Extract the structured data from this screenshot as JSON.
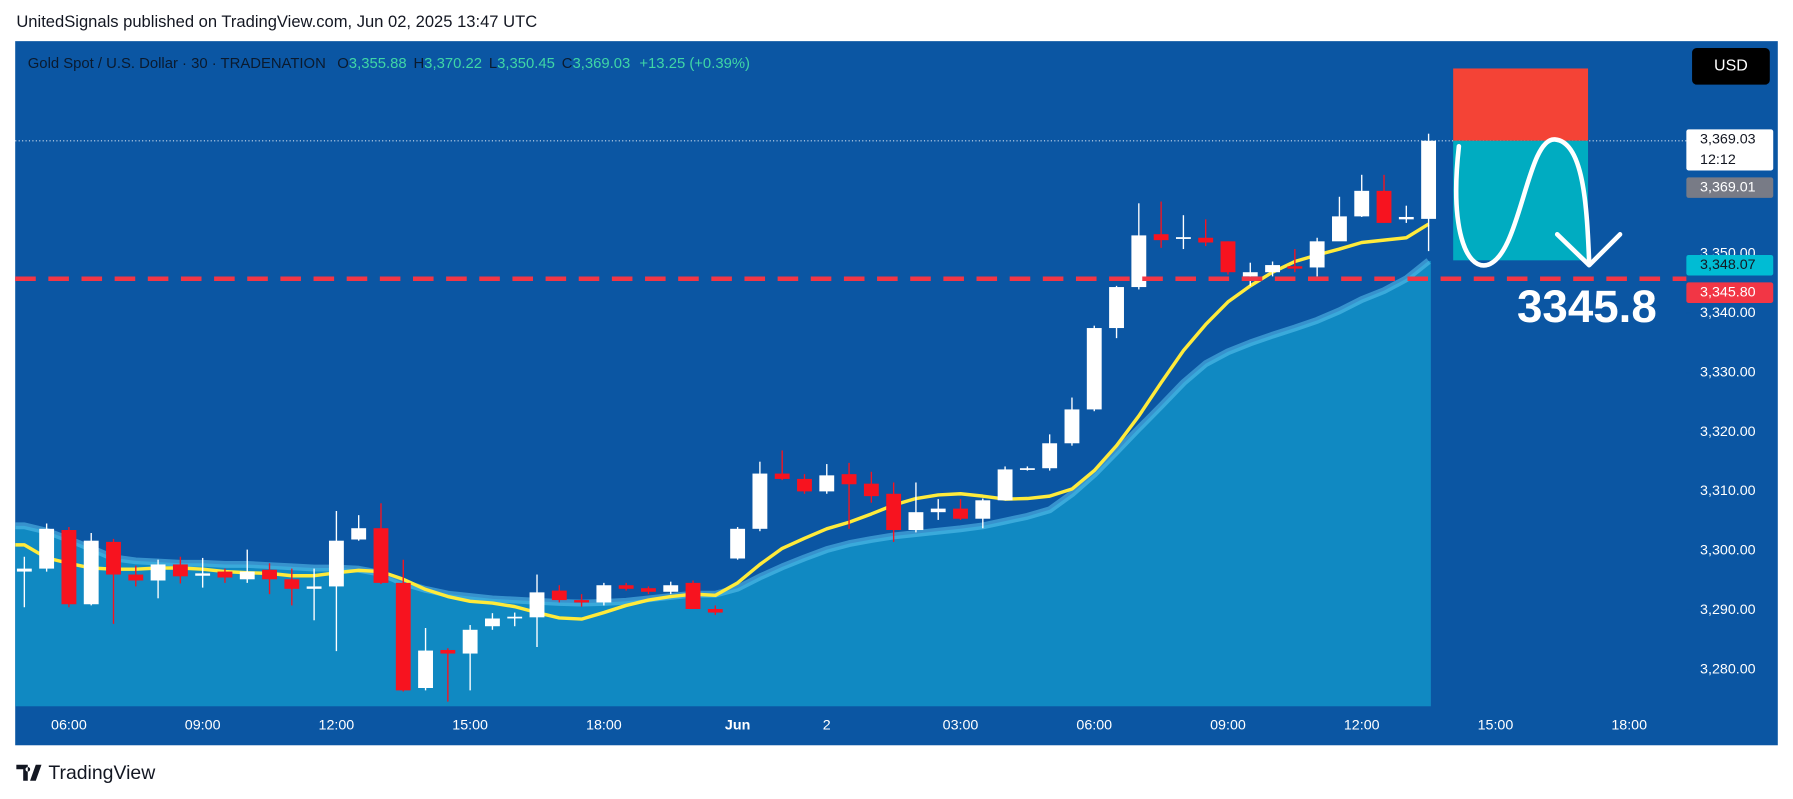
{
  "header": {
    "text": "UnitedSignals published on TradingView.com, Jun 02, 2025 13:47 UTC"
  },
  "chart_data": {
    "type": "candlestick",
    "symbol": "Gold Spot / U.S. Dollar · 30 · TRADENATION",
    "ohlc_legend": [
      {
        "key": "O",
        "text": "3,355.88"
      },
      {
        "key": "H",
        "text": "3,370.22"
      },
      {
        "key": "L",
        "text": "3,350.45"
      },
      {
        "key": "C",
        "text": "3,369.03"
      }
    ],
    "change": "+13.25 (+0.39%)",
    "currency": "USD",
    "categories": [
      null,
      null,
      "06:00",
      null,
      null,
      null,
      null,
      null,
      "09:00",
      null,
      null,
      null,
      null,
      null,
      "12:00",
      null,
      null,
      null,
      null,
      null,
      "15:00",
      null,
      null,
      null,
      null,
      null,
      "18:00",
      null,
      null,
      null,
      null,
      null,
      "Jun",
      null,
      null,
      null,
      "2",
      null,
      null,
      null,
      null,
      null,
      "03:00",
      null,
      null,
      null,
      null,
      null,
      "06:00",
      null,
      null,
      null,
      null,
      null,
      "09:00",
      null,
      null,
      null,
      null,
      null,
      "12:00",
      null,
      null,
      null,
      null,
      null,
      "15:00",
      null,
      null,
      null,
      null,
      null,
      "18:00",
      null,
      null
    ],
    "open": [
      3296.5,
      3297,
      3303.5,
      3291,
      3301.5,
      3296,
      3295,
      3297.7,
      3295.8,
      3296.5,
      3295.2,
      3296.8,
      3295.2,
      3293.6,
      3294,
      3301.9,
      3303.8,
      3294.6,
      3276.9,
      3283.3,
      3282.7,
      3287.3,
      3288.7,
      3288.8,
      3293.3,
      3291.7,
      3291.3,
      3294.2,
      3293.7,
      3293.1,
      3294.6,
      3290.2,
      3298.7,
      3303.7,
      3313,
      3312.1,
      3310,
      3312.9,
      3311.3,
      3309.6,
      3303.5,
      3306.5,
      3307.1,
      3305.4,
      3308.5,
      3313.7,
      3313.9,
      3318.1,
      3323.8,
      3337.5,
      3344.4,
      3353.3,
      3352.5,
      3352.7,
      3352.1,
      3346.2,
      3346.9,
      3347.9,
      3347.7,
      3352.1,
      3356.3,
      3360.6,
      3355.8,
      3355.88,
      null,
      null,
      null,
      null,
      null,
      null,
      null,
      null,
      null,
      null,
      null
    ],
    "high": [
      3299,
      3304.6,
      3304,
      3303,
      3302,
      3297.5,
      3298.5,
      3299,
      3298.8,
      3297,
      3300.2,
      3297.9,
      3297,
      3297,
      3306.7,
      3306,
      3308,
      3298.5,
      3287,
      3283.6,
      3287.5,
      3289.5,
      3289.6,
      3296,
      3294.2,
      3292.7,
      3294.6,
      3294.6,
      3294,
      3294.8,
      3295,
      3290.8,
      3304,
      3315,
      3316.9,
      3312.9,
      3314.6,
      3314.8,
      3313.3,
      3311.5,
      3311.5,
      3308.7,
      3308.7,
      3308.8,
      3314.2,
      3314.2,
      3319.6,
      3325.8,
      3337.9,
      3344.6,
      3358.5,
      3358.8,
      3356.5,
      3355.8,
      3352.1,
      3348.5,
      3348.7,
      3350.8,
      3352.7,
      3359.6,
      3363.3,
      3363.3,
      3358.1,
      3370.22,
      null,
      null,
      null,
      null,
      null,
      null,
      null,
      null,
      null,
      null,
      null
    ],
    "low": [
      3290.5,
      3296.5,
      3290.5,
      3290.8,
      3287.7,
      3294,
      3292,
      3294.5,
      3293.8,
      3294.6,
      3294.6,
      3292.7,
      3290.8,
      3288.3,
      3283.1,
      3301.7,
      3294.4,
      3276.3,
      3276.5,
      3274.6,
      3276.5,
      3286.7,
      3287.3,
      3283.8,
      3291.3,
      3290.6,
      3290.8,
      3293.3,
      3292.7,
      3292.7,
      3290.2,
      3289.2,
      3298.5,
      3303.3,
      3311.9,
      3309.6,
      3309.6,
      3303.7,
      3308.1,
      3301.5,
      3303.1,
      3305.2,
      3305.2,
      3303.8,
      3308.5,
      3313.5,
      3313.5,
      3317.7,
      3323.5,
      3335.8,
      3344,
      3351,
      3350.8,
      3351.3,
      3346.5,
      3344.6,
      3346.2,
      3346.9,
      3346.2,
      3352.7,
      3356.2,
      3355.2,
      3355.2,
      3350.45,
      null,
      null,
      null,
      null,
      null,
      null,
      null,
      null,
      null,
      null,
      null
    ],
    "close": [
      3297,
      3303.7,
      3291,
      3301.7,
      3296,
      3295,
      3297.7,
      3295.7,
      3296.2,
      3295.5,
      3296.5,
      3295.2,
      3293.6,
      3294,
      3301.7,
      3303.8,
      3294.6,
      3276.5,
      3283.2,
      3282.7,
      3286.7,
      3288.6,
      3288.9,
      3293,
      3291.7,
      3291.3,
      3294.2,
      3293.6,
      3293.1,
      3294.2,
      3290.2,
      3289.6,
      3303.7,
      3313,
      3312.1,
      3310,
      3312.7,
      3311.2,
      3309.2,
      3303.5,
      3306.5,
      3307.1,
      3305.4,
      3308.5,
      3313.7,
      3313.9,
      3318.1,
      3323.8,
      3337.5,
      3344.4,
      3353.1,
      3352.3,
      3352.8,
      3351.9,
      3346.9,
      3346.9,
      3348.1,
      3347.5,
      3352.1,
      3356.3,
      3360.6,
      3355.2,
      3356.2,
      3369.03,
      null,
      null,
      null,
      null,
      null,
      null,
      null,
      null,
      null,
      null,
      null
    ],
    "up_color": "#ffffff",
    "down_color": "#f7131f",
    "lines": [
      {
        "color": "#5cc4f0",
        "fill": "#1089c2",
        "values": [
          3304.2,
          3303.3,
          3301.9,
          3300.4,
          3298.8,
          3298.3,
          3298.1,
          3297.9,
          3297.9,
          3297.7,
          3297.7,
          3297.5,
          3297.3,
          3297.1,
          3297.1,
          3296.9,
          3296.2,
          3294.6,
          3293.5,
          3292.7,
          3292.3,
          3291.9,
          3291.7,
          3291.5,
          3291.3,
          3291.2,
          3291.3,
          3291.5,
          3291.9,
          3292.3,
          3292.7,
          3292.7,
          3293.7,
          3295.6,
          3297.3,
          3298.8,
          3300.2,
          3301.2,
          3301.9,
          3302.5,
          3302.9,
          3303.3,
          3303.7,
          3304.2,
          3305,
          3305.8,
          3306.9,
          3309.6,
          3312.9,
          3316.7,
          3320.6,
          3324.4,
          3328.3,
          3331.5,
          3333.5,
          3335,
          3336.3,
          3337.5,
          3338.8,
          3340.4,
          3342.3,
          3343.8,
          3345.8,
          3348.8,
          null,
          null,
          null,
          null,
          null,
          null,
          null,
          null,
          null,
          null,
          null
        ]
      },
      {
        "color": "#ffeb3b",
        "values": [
          3301,
          3298.8,
          3297.9,
          3297.1,
          3296.9,
          3296.9,
          3297.1,
          3297.1,
          3296.9,
          3296.5,
          3296.3,
          3296.2,
          3295.8,
          3295.8,
          3296.3,
          3296.7,
          3296.5,
          3295.2,
          3293.5,
          3292.3,
          3291.5,
          3291.2,
          3290.6,
          3289.6,
          3288.7,
          3288.5,
          3289.6,
          3290.8,
          3291.7,
          3292.3,
          3292.7,
          3292.5,
          3294.6,
          3297.7,
          3300.4,
          3302.1,
          3303.7,
          3304.8,
          3306.2,
          3307.7,
          3308.8,
          3309.4,
          3309.6,
          3309.2,
          3308.7,
          3308.8,
          3309.2,
          3310.4,
          3313.5,
          3317.7,
          3322.7,
          3328.3,
          3333.7,
          3338.1,
          3341.9,
          3344.6,
          3346.9,
          3348.7,
          3349.8,
          3350.8,
          3351.9,
          3352.3,
          3352.7,
          3355,
          null,
          null,
          null,
          null,
          null,
          null,
          null,
          null,
          null,
          null,
          null
        ]
      }
    ],
    "ylim": [
      3273.8,
      3385.8
    ],
    "yticks": [
      {
        "value": 3280,
        "label": "3,280.00"
      },
      {
        "value": 3290,
        "label": "3,290.00"
      },
      {
        "value": 3300,
        "label": "3,300.00"
      },
      {
        "value": 3310,
        "label": "3,310.00"
      },
      {
        "value": 3320,
        "label": "3,320.00"
      },
      {
        "value": 3330,
        "label": "3,330.00"
      },
      {
        "value": 3340,
        "label": "3,340.00"
      },
      {
        "value": 3350,
        "label": "3,350.00"
      }
    ],
    "grid": false,
    "price_labels": [
      {
        "value": 3369.03,
        "label": "3,369.03",
        "sub": "12:12",
        "bg": "#ffffff",
        "fg": "#131722",
        "line": "dotted"
      },
      {
        "value": 3369.01,
        "label": "3,369.01",
        "bg": "#787b86",
        "fg": "#ffffff"
      },
      {
        "value": 3348.07,
        "label": "3,348.07",
        "bg": "#00bcd4",
        "fg": "#131722"
      },
      {
        "value": 3345.8,
        "label": "3,345.80",
        "bg": "#f23645",
        "fg": "#ffffff",
        "line": "dashed"
      }
    ],
    "position": {
      "stop": 3381.2,
      "entry": 3369.03,
      "target": 3348.9,
      "stop_color": "#f44336",
      "target_color": "#00acc1"
    },
    "annotation": "3345.8"
  },
  "footer": {
    "brand": "TradingView"
  }
}
